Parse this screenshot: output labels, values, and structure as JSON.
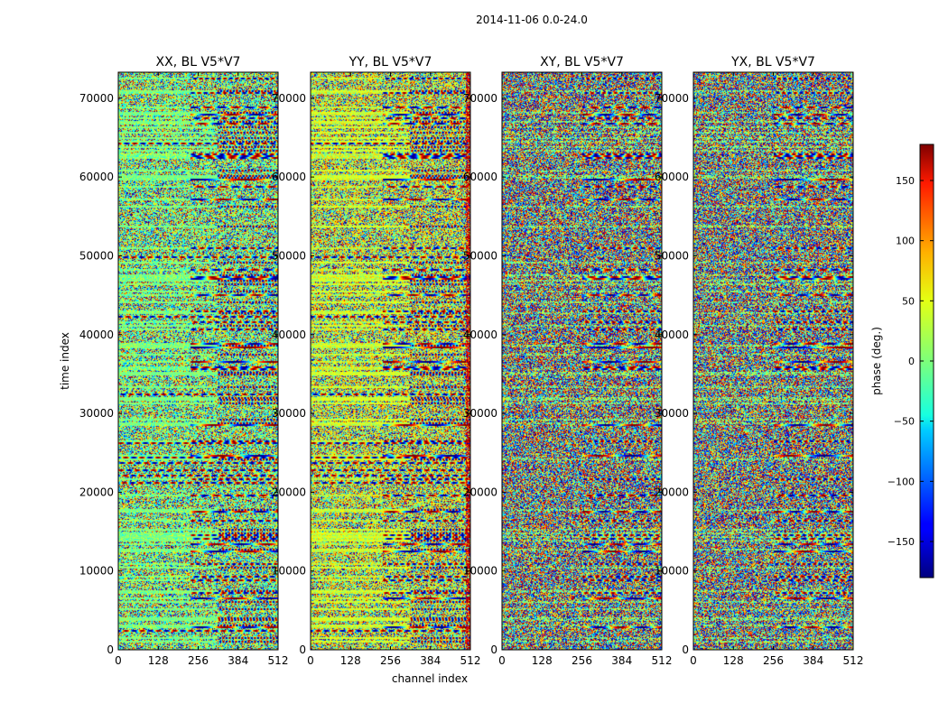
{
  "suptitle": "2014-11-06 0.0-24.0",
  "chart_data": {
    "type": "heatmap",
    "panels": [
      {
        "title": "XX, BL V5*V7",
        "style": "xx"
      },
      {
        "title": "YY, BL V5*V7",
        "style": "yy"
      },
      {
        "title": "XY, BL V5*V7",
        "style": "xy"
      },
      {
        "title": "YX, BL V5*V7",
        "style": "yx"
      }
    ],
    "xlabel": "channel index",
    "ylabel": "time index",
    "xlim": [
      0,
      512
    ],
    "ylim": [
      0,
      73300
    ],
    "xticks": [
      "0",
      "128",
      "256",
      "384",
      "512"
    ],
    "xtick_values": [
      0,
      128,
      256,
      384,
      512
    ],
    "yticks": [
      "0",
      "10000",
      "20000",
      "30000",
      "40000",
      "50000",
      "60000",
      "70000"
    ],
    "ytick_values": [
      0,
      10000,
      20000,
      30000,
      40000,
      50000,
      60000,
      70000
    ],
    "colorbar": {
      "label": "phase (deg.)",
      "range": [
        -180,
        180
      ],
      "ticks": [
        "−150",
        "−100",
        "−50",
        "0",
        "50",
        "100",
        "150"
      ],
      "tick_values": [
        -150,
        -100,
        -50,
        0,
        50,
        100,
        150
      ],
      "colormap": "jet"
    }
  }
}
